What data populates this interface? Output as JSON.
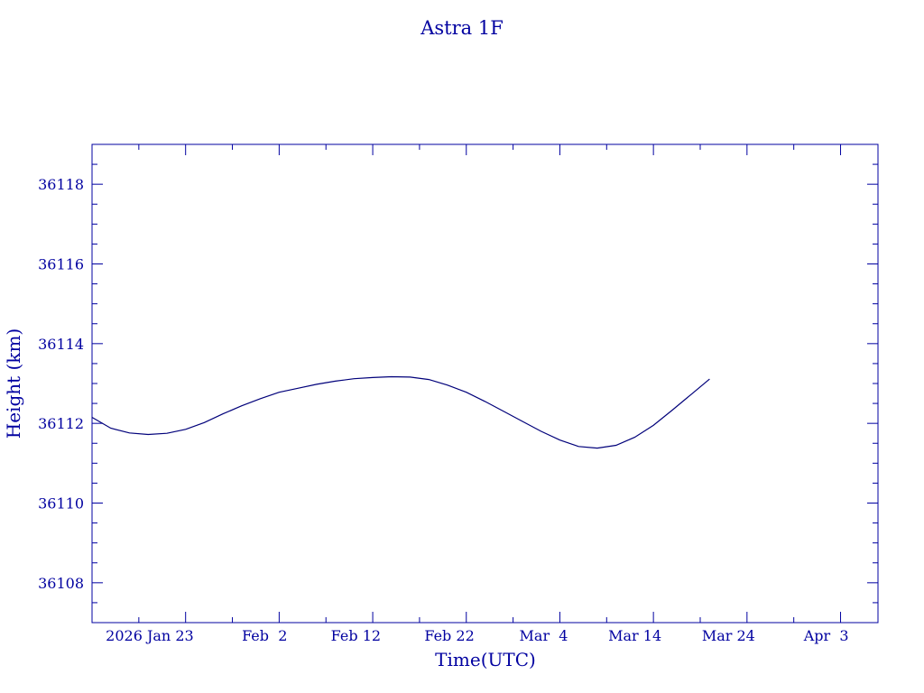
{
  "chart_data": {
    "type": "line",
    "title": "Astra 1F",
    "xlabel": "Time(UTC)",
    "ylabel": "Height (km)",
    "xlim": [
      "2026-01-13",
      "2026-04-07"
    ],
    "ylim": [
      36107.0,
      36119.0
    ],
    "grid": false,
    "x_tick_labels": [
      {
        "date": "2026-01-23",
        "label": "2026 Jan 23"
      },
      {
        "date": "2026-02-02",
        "label": "Feb  2"
      },
      {
        "date": "2026-02-12",
        "label": "Feb 12"
      },
      {
        "date": "2026-02-22",
        "label": "Feb 22"
      },
      {
        "date": "2026-03-04",
        "label": "Mar  4"
      },
      {
        "date": "2026-03-14",
        "label": "Mar 14"
      },
      {
        "date": "2026-03-24",
        "label": "Mar 24"
      },
      {
        "date": "2026-04-03",
        "label": "Apr  3"
      }
    ],
    "y_tick_labels": [
      "36108",
      "36110",
      "36112",
      "36114",
      "36116",
      "36118"
    ],
    "series": [
      {
        "x": [
          "2026-01-13",
          "2026-01-15",
          "2026-01-17",
          "2026-01-19",
          "2026-01-21",
          "2026-01-23",
          "2026-01-25",
          "2026-01-27",
          "2026-01-29",
          "2026-01-31",
          "2026-02-02",
          "2026-02-04",
          "2026-02-06",
          "2026-02-08",
          "2026-02-10",
          "2026-02-12",
          "2026-02-14",
          "2026-02-16",
          "2026-02-18",
          "2026-02-20",
          "2026-02-22",
          "2026-02-24",
          "2026-02-26",
          "2026-02-28",
          "2026-03-02",
          "2026-03-04",
          "2026-03-06",
          "2026-03-08",
          "2026-03-10",
          "2026-03-12",
          "2026-03-14",
          "2026-03-16",
          "2026-03-18",
          "2026-03-20"
        ],
        "y": [
          36112.15,
          36111.88,
          36111.76,
          36111.72,
          36111.75,
          36111.85,
          36112.02,
          36112.24,
          36112.44,
          36112.62,
          36112.78,
          36112.88,
          36112.98,
          36113.06,
          36113.12,
          36113.15,
          36113.17,
          36113.16,
          36113.1,
          36112.96,
          36112.78,
          36112.55,
          36112.3,
          36112.05,
          36111.8,
          36111.58,
          36111.42,
          36111.38,
          36111.45,
          36111.65,
          36111.95,
          36112.33,
          36112.72,
          36113.11
        ]
      }
    ]
  }
}
